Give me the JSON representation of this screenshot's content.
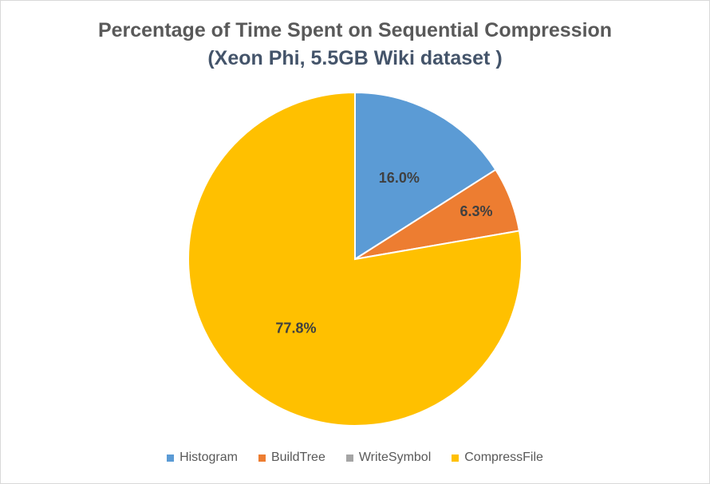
{
  "chart_data": {
    "type": "pie",
    "title": "Percentage of Time Spent on Sequential Compression",
    "subtitle": "(Xeon Phi, 5.5GB Wiki dataset )",
    "categories": [
      "Histogram",
      "BuildTree",
      "WriteSymbol",
      "CompressFile"
    ],
    "values": [
      16.0,
      6.3,
      0.0,
      77.8
    ],
    "data_labels": [
      "16.0%",
      "6.3%",
      "",
      "77.8%"
    ],
    "colors": [
      "#5b9bd5",
      "#ed7d31",
      "#a5a5a5",
      "#ffc000"
    ],
    "legend_position": "bottom",
    "start_angle": "12 o'clock, clockwise"
  }
}
